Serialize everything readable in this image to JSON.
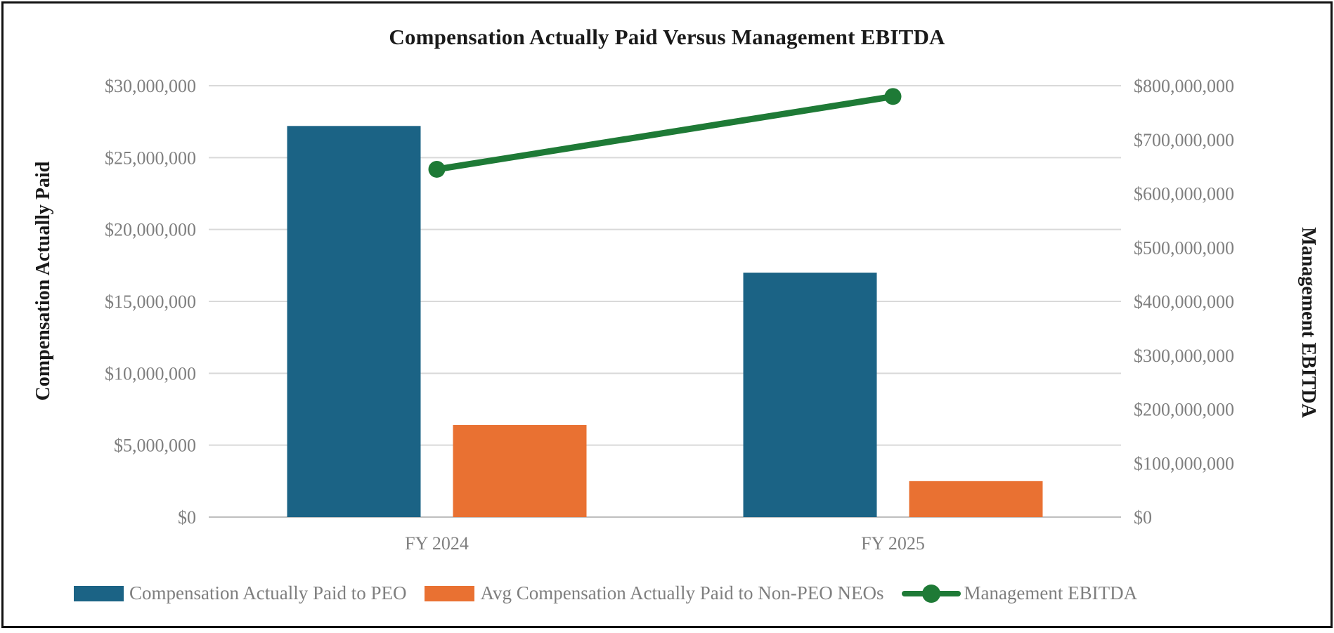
{
  "page": {
    "background": "#ffffff",
    "frame_border_color": "#111111"
  },
  "chart_data": {
    "type": "combo-bar-line",
    "title": "Compensation Actually Paid Versus Management EBITDA",
    "categories": [
      "FY 2024",
      "FY 2025"
    ],
    "series": [
      {
        "name": "Compensation Actually Paid to PEO",
        "type": "bar",
        "axis": "left",
        "color": "#1B6385",
        "values": [
          27200000,
          17000000
        ]
      },
      {
        "name": "Avg Compensation Actually Paid to Non-PEO NEOs",
        "type": "bar",
        "axis": "left",
        "color": "#E97132",
        "values": [
          6400000,
          2500000
        ]
      },
      {
        "name": "Management EBITDA",
        "type": "line",
        "axis": "right",
        "color": "#1E7A36",
        "values": [
          645000000,
          780000000
        ]
      }
    ],
    "left_axis": {
      "label": "Compensation Actually Paid",
      "min": 0,
      "max": 30000000,
      "step": 5000000,
      "tick_labels": [
        "$0",
        "$5,000,000",
        "$10,000,000",
        "$15,000,000",
        "$20,000,000",
        "$25,000,000",
        "$30,000,000"
      ]
    },
    "right_axis": {
      "label": "Management EBITDA",
      "min": 0,
      "max": 800000000,
      "step": 100000000,
      "tick_labels": [
        "$0",
        "$100,000,000",
        "$200,000,000",
        "$300,000,000",
        "$400,000,000",
        "$500,000,000",
        "$600,000,000",
        "$700,000,000",
        "$800,000,000"
      ]
    },
    "grid": true,
    "legend_position": "bottom",
    "colors": {
      "gridline": "#D9D9D9",
      "axis_line": "#BFBFBF",
      "tick_text": "#7F7F7F",
      "title_text": "#1A1A1A"
    }
  }
}
